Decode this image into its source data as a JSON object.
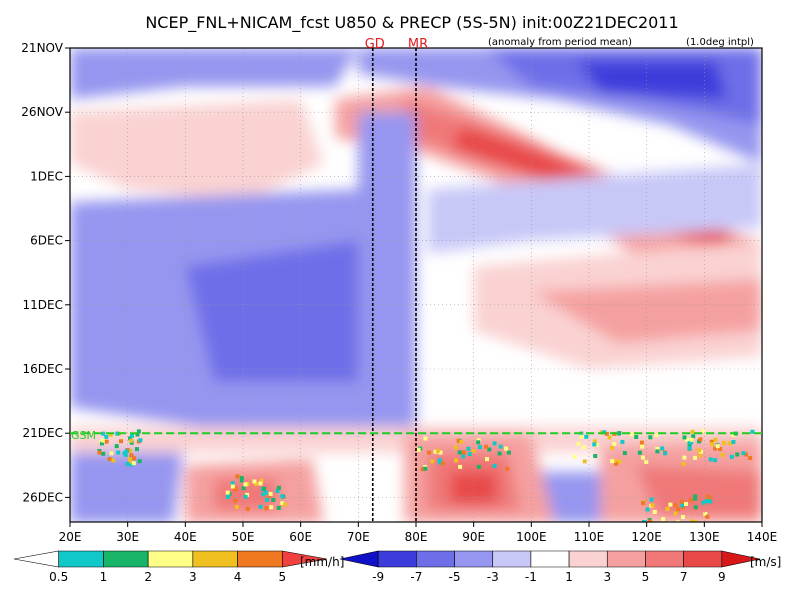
{
  "title": "NCEP_FNL+NICAM_fcst U850 & PRECP (5S-5N) init:00Z21DEC2011",
  "subtitle_left": "(anomaly from period mean)",
  "subtitle_right": "(1.0deg intpl)",
  "chart_data": {
    "type": "heatmap",
    "description_fields": "Hovmoller diagram: longitude (x) vs time (y), U850 anomaly shaded, precipitation overlaid",
    "x_axis": {
      "min": 20,
      "max": 140,
      "ticks": [
        20,
        30,
        40,
        50,
        60,
        70,
        80,
        90,
        100,
        110,
        120,
        130,
        140
      ],
      "tick_labels": [
        "20E",
        "30E",
        "40E",
        "50E",
        "60E",
        "70E",
        "80E",
        "90E",
        "100E",
        "110E",
        "120E",
        "130E",
        "140E"
      ]
    },
    "y_axis": {
      "start": "21NOV",
      "end": "28DEC",
      "ticks": [
        0,
        5,
        10,
        15,
        20,
        25,
        30,
        35
      ],
      "tick_labels": [
        "21NOV",
        "26NOV",
        "1DEC",
        "6DEC",
        "11DEC",
        "16DEC",
        "21DEC",
        "26DEC"
      ],
      "total_days": 37
    },
    "forecast_start_day": 30,
    "forecast_marker_label": "GSM",
    "reference_lines": [
      {
        "lon": 72.5,
        "label": "GD"
      },
      {
        "lon": 80.0,
        "label": "MR"
      }
    ],
    "precip_legend": {
      "unit": "[mm/h]",
      "labels": [
        "0.5",
        "1",
        "2",
        "3",
        "4",
        "5"
      ],
      "colors": [
        "#ffffff",
        "#10c8c8",
        "#18b468",
        "#ffff88",
        "#f0c020",
        "#f07820",
        "#f04040"
      ]
    },
    "u850_legend": {
      "unit": "[m/s]",
      "labels": [
        "-9",
        "-7",
        "-5",
        "-3",
        "-1",
        "1",
        "3",
        "5",
        "7",
        "9"
      ],
      "colors": [
        "#1010c8",
        "#3c3cdc",
        "#6e6ee8",
        "#9696f0",
        "#c8c8f8",
        "#ffffff",
        "#fad2d2",
        "#f5a0a0",
        "#f07878",
        "#e84848",
        "#d81818"
      ]
    }
  }
}
